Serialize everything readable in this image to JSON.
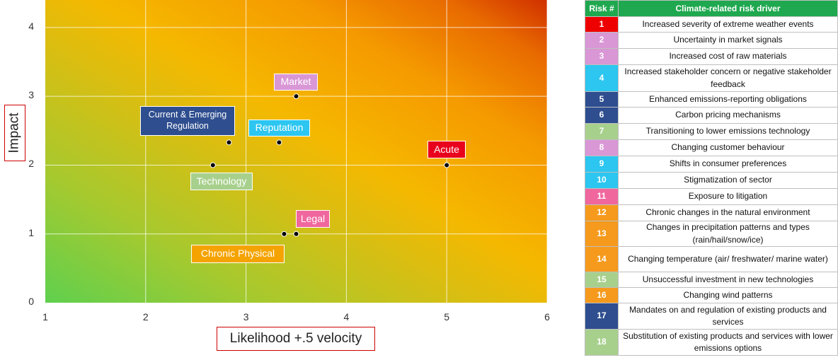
{
  "chart_data": {
    "type": "scatter",
    "xlabel": "Likelihood +.5 velocity",
    "ylabel": "Impact",
    "xlim": [
      1,
      6
    ],
    "ylim": [
      0,
      4.4
    ],
    "x_ticks": [
      1,
      2,
      3,
      4,
      5,
      6
    ],
    "y_ticks": [
      0,
      1,
      2,
      3,
      4
    ],
    "grid": true,
    "background": "heatmap gradient: green (bottom-left) through yellow/orange to red (top-right)",
    "points": [
      {
        "label": "Market",
        "x": 3.5,
        "y": 3.0,
        "color": "#d997d6"
      },
      {
        "label": "Current & Emerging Regulation",
        "x": 2.83,
        "y": 2.33,
        "color": "#2e4e8f"
      },
      {
        "label": "Reputation",
        "x": 3.33,
        "y": 2.33,
        "color": "#2cc6f0"
      },
      {
        "label": "Technology",
        "x": 2.67,
        "y": 2.0,
        "color": "#a8d08d"
      },
      {
        "label": "Acute",
        "x": 5.0,
        "y": 2.0,
        "color": "#e8001c"
      },
      {
        "label": "Legal",
        "x": 3.5,
        "y": 1.0,
        "color": "#f0679e"
      },
      {
        "label": "Chronic Physical",
        "x": 3.38,
        "y": 1.0,
        "color": "#f5a300"
      }
    ]
  },
  "table": {
    "header": {
      "num": "Risk #",
      "driver": "Climate-related risk driver"
    },
    "rows": [
      {
        "num": "1",
        "driver": "Increased severity of extreme weather events",
        "color": "#ee0000"
      },
      {
        "num": "2",
        "driver": "Uncertainty in market signals",
        "color": "#d997d6"
      },
      {
        "num": "3",
        "driver": "Increased cost of raw materials",
        "color": "#d997d6"
      },
      {
        "num": "4",
        "driver": "Increased stakeholder concern or negative stakeholder feedback",
        "color": "#2cc6f0"
      },
      {
        "num": "5",
        "driver": "Enhanced emissions-reporting obligations",
        "color": "#2e4e8f"
      },
      {
        "num": "6",
        "driver": "Carbon pricing mechanisms",
        "color": "#2e4e8f"
      },
      {
        "num": "7",
        "driver": "Transitioning to lower emissions technology",
        "color": "#a8d08d"
      },
      {
        "num": "8",
        "driver": "Changing customer behaviour",
        "color": "#d997d6"
      },
      {
        "num": "9",
        "driver": "Shifts in consumer preferences",
        "color": "#2cc6f0"
      },
      {
        "num": "10",
        "driver": "Stigmatization of sector",
        "color": "#2cc6f0"
      },
      {
        "num": "11",
        "driver": "Exposure to litigation",
        "color": "#f0679e"
      },
      {
        "num": "12",
        "driver": "Chronic changes in the natural environment",
        "color": "#f59a1c"
      },
      {
        "num": "13",
        "driver": "Changes in precipitation patterns and types (rain/hail/snow/ice)",
        "color": "#f59a1c"
      },
      {
        "num": "14",
        "driver": "Changing temperature (air/ freshwater/ marine water)",
        "color": "#f59a1c"
      },
      {
        "num": "15",
        "driver": "Unsuccessful investment in new technologies",
        "color": "#a8d08d"
      },
      {
        "num": "16",
        "driver": "Changing wind patterns",
        "color": "#f59a1c"
      },
      {
        "num": "17",
        "driver": "Mandates on and regulation of existing products and services",
        "color": "#2e4e8f"
      },
      {
        "num": "18",
        "driver": "Substitution of existing products and services with lower emissions options",
        "color": "#a8d08d"
      }
    ]
  }
}
